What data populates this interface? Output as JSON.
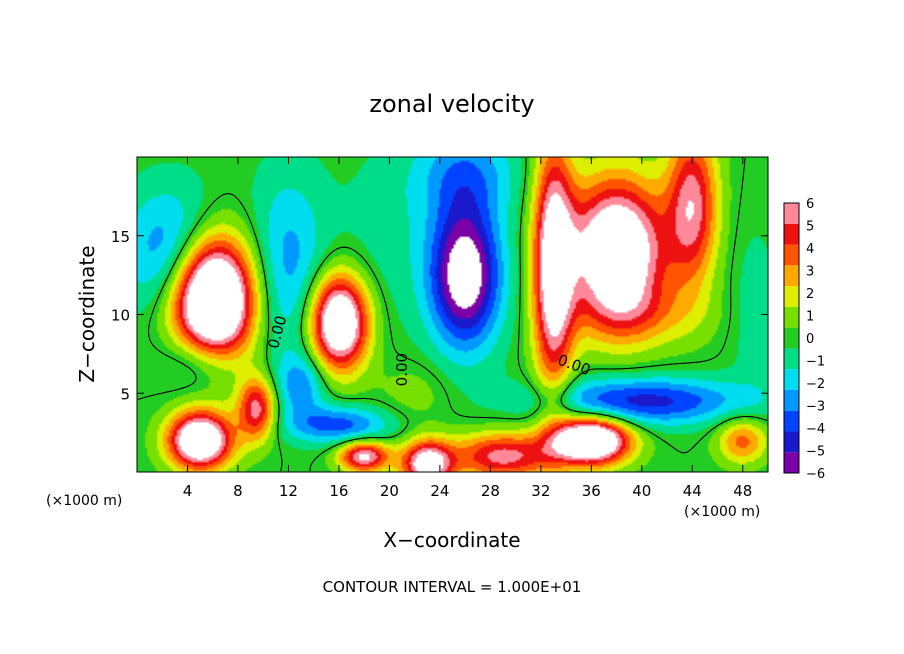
{
  "chart_data": {
    "type": "heatmap",
    "title": "zonal velocity",
    "xlabel": "X−coordinate",
    "ylabel": "Z−coordinate",
    "x_unit": "(×1000 m)",
    "z_unit": "(×1000 m)",
    "footer": "CONTOUR INTERVAL = 1.000E+01",
    "xlim": [
      0,
      50
    ],
    "ylim": [
      0,
      20
    ],
    "x_ticks": [
      4,
      8,
      12,
      16,
      20,
      24,
      28,
      32,
      36,
      40,
      44,
      48
    ],
    "x_tick_labels": [
      "4",
      "8",
      "12",
      "16",
      "20",
      "24",
      "28",
      "32",
      "36",
      "40",
      "44",
      "48"
    ],
    "y_ticks": [
      5,
      10,
      15
    ],
    "y_tick_labels": [
      "5",
      "10",
      "15"
    ],
    "colorbar": {
      "levels": [
        -6,
        -5,
        -4,
        -3,
        -2,
        -1,
        0,
        1,
        2,
        3,
        4,
        5,
        6
      ],
      "labels": [
        "−6",
        "−5",
        "−4",
        "−3",
        "−2",
        "−1",
        "0",
        "1",
        "2",
        "3",
        "4",
        "5",
        "6"
      ],
      "colors": [
        "#7a00a8",
        "#1a1acc",
        "#0044ff",
        "#0099ff",
        "#00ddee",
        "#00dd88",
        "#22cc22",
        "#77e000",
        "#ddee00",
        "#ffaa00",
        "#ff5500",
        "#ee1111",
        "#ff8899"
      ]
    },
    "contour_labels": [
      {
        "text": "0.00",
        "x": 11.5,
        "z": 8.8
      },
      {
        "text": "0.00",
        "x": 21.4,
        "z": 6.5
      },
      {
        "text": "0.00",
        "x": 34.5,
        "z": 6.5
      }
    ],
    "field_features": [
      {
        "x": 6,
        "z": 11,
        "sx": 3.2,
        "sz": 4,
        "a": 13
      },
      {
        "x": 5,
        "z": 7,
        "sx": 3,
        "sz": 2,
        "a": -3
      },
      {
        "x": 3,
        "z": 14,
        "sx": 4,
        "sz": 4,
        "a": -4
      },
      {
        "x": 12,
        "z": 13,
        "sx": 3,
        "sz": 6,
        "a": -3
      },
      {
        "x": 16,
        "z": 9.5,
        "sx": 2.3,
        "sz": 3,
        "a": 10
      },
      {
        "x": 13,
        "z": 5.5,
        "sx": 2,
        "sz": 2,
        "a": -3
      },
      {
        "x": 26,
        "z": 12.5,
        "sx": 2.8,
        "sz": 4.5,
        "a": -8
      },
      {
        "x": 26,
        "z": 19,
        "sx": 4,
        "sz": 3,
        "a": -3
      },
      {
        "x": 33,
        "z": 13,
        "sx": 1.6,
        "sz": 8,
        "a": 8
      },
      {
        "x": 38,
        "z": 14,
        "sx": 3.8,
        "sz": 4.5,
        "a": 10
      },
      {
        "x": 44,
        "z": 17,
        "sx": 2,
        "sz": 5,
        "a": 6
      },
      {
        "x": 40,
        "z": 10,
        "sx": 5,
        "sz": 2,
        "a": 2
      },
      {
        "x": 40,
        "z": 4.5,
        "sx": 8,
        "sz": 1.5,
        "a": -5
      },
      {
        "x": 36,
        "z": 2,
        "sx": 3,
        "sz": 1.5,
        "a": 11
      },
      {
        "x": 29,
        "z": 1,
        "sx": 4,
        "sz": 1.5,
        "a": 6
      },
      {
        "x": 23,
        "z": 0.5,
        "sx": 2,
        "sz": 1.5,
        "a": 8
      },
      {
        "x": 18,
        "z": 1,
        "sx": 2,
        "sz": 1,
        "a": 7
      },
      {
        "x": 16,
        "z": 3,
        "sx": 4,
        "sz": 1.2,
        "a": -4
      },
      {
        "x": 5,
        "z": 2,
        "sx": 2.5,
        "sz": 1.8,
        "a": 10
      },
      {
        "x": 9.5,
        "z": 4,
        "sx": 1.5,
        "sz": 2,
        "a": 6
      },
      {
        "x": 48,
        "z": 2,
        "sx": 2,
        "sz": 1.5,
        "a": 4
      },
      {
        "x": 49,
        "z": 10,
        "sx": 2,
        "sz": 6,
        "a": -1
      },
      {
        "x": 20,
        "z": 15,
        "sx": 4,
        "sz": 6,
        "a": -1
      },
      {
        "x": 22,
        "z": 5,
        "sx": 3,
        "sz": 2,
        "a": 1
      }
    ]
  }
}
